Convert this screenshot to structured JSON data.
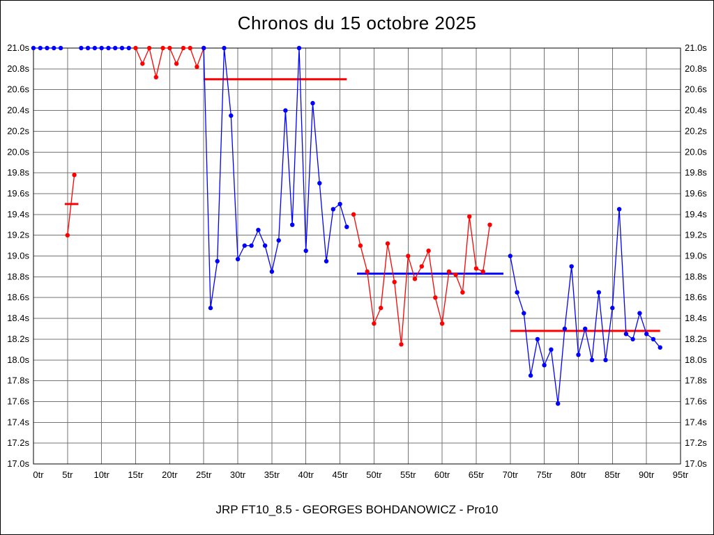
{
  "title": "Chronos du 15 octobre 2025",
  "footer": "JRP FT10_8.5 - GEORGES BOHDANOWICZ - Pro10",
  "chart_data": {
    "type": "line",
    "title": "Chronos du 15 octobre 2025",
    "xlabel": "",
    "ylabel": "",
    "xlim": [
      0,
      95
    ],
    "ylim": [
      17.0,
      21.0
    ],
    "x_tick_step": 5,
    "y_tick_step": 0.2,
    "grid": true,
    "grid_color": "#737373",
    "border_color": "#000000",
    "x_ticks": [
      "0tr",
      "5tr",
      "10tr",
      "15tr",
      "20tr",
      "25tr",
      "30tr",
      "35tr",
      "40tr",
      "45tr",
      "50tr",
      "55tr",
      "60tr",
      "65tr",
      "70tr",
      "75tr",
      "80tr",
      "85tr",
      "90tr",
      "95tr"
    ],
    "y_ticks": [
      "21.0s",
      "20.8s",
      "20.6s",
      "20.4s",
      "20.2s",
      "20.0s",
      "19.8s",
      "19.6s",
      "19.4s",
      "19.2s",
      "19.0s",
      "18.8s",
      "18.6s",
      "18.4s",
      "18.2s",
      "18.0s",
      "17.8s",
      "17.6s",
      "17.4s",
      "17.2s",
      "17.0s"
    ],
    "series": [
      {
        "name": "blue-run-1",
        "color": "#0000ff",
        "points": [
          [
            0,
            21
          ],
          [
            1,
            21
          ],
          [
            2,
            21
          ],
          [
            3,
            21
          ],
          [
            4,
            21
          ]
        ]
      },
      {
        "name": "red-run-1",
        "color": "#ff0000",
        "points": [
          [
            5,
            19.2
          ],
          [
            6,
            19.78
          ]
        ]
      },
      {
        "name": "blue-run-2",
        "color": "#0000ff",
        "points": [
          [
            7,
            21
          ],
          [
            8,
            21
          ],
          [
            9,
            21
          ],
          [
            10,
            21
          ],
          [
            11,
            21
          ],
          [
            12,
            21
          ],
          [
            13,
            21
          ],
          [
            14,
            21
          ]
        ]
      },
      {
        "name": "red-run-2",
        "color": "#ff0000",
        "points": [
          [
            15,
            21
          ],
          [
            16,
            20.85
          ],
          [
            17,
            21
          ],
          [
            18,
            20.72
          ],
          [
            19,
            21
          ],
          [
            20,
            21
          ],
          [
            21,
            20.85
          ],
          [
            22,
            21
          ],
          [
            23,
            21
          ],
          [
            24,
            20.82
          ],
          [
            25,
            21
          ]
        ]
      },
      {
        "name": "blue-run-3",
        "color": "#0000ff",
        "points": [
          [
            25,
            21
          ],
          [
            26,
            18.5
          ],
          [
            27,
            18.95
          ],
          [
            28,
            21
          ],
          [
            29,
            20.35
          ],
          [
            30,
            18.97
          ],
          [
            31,
            19.1
          ],
          [
            32,
            19.1
          ],
          [
            33,
            19.25
          ],
          [
            34,
            19.1
          ],
          [
            35,
            18.85
          ],
          [
            36,
            19.15
          ],
          [
            37,
            20.4
          ],
          [
            38,
            19.3
          ],
          [
            39,
            21
          ],
          [
            40,
            19.05
          ],
          [
            41,
            20.47
          ],
          [
            42,
            19.7
          ],
          [
            43,
            18.95
          ],
          [
            44,
            19.45
          ],
          [
            45,
            19.5
          ],
          [
            46,
            19.28
          ]
        ]
      },
      {
        "name": "red-run-3",
        "color": "#ff0000",
        "points": [
          [
            47,
            19.4
          ],
          [
            48,
            19.1
          ],
          [
            49,
            18.85
          ],
          [
            50,
            18.35
          ],
          [
            51,
            18.5
          ],
          [
            52,
            19.12
          ],
          [
            53,
            18.75
          ],
          [
            54,
            18.15
          ],
          [
            55,
            19
          ],
          [
            56,
            18.78
          ],
          [
            57,
            18.9
          ],
          [
            58,
            19.05
          ],
          [
            59,
            18.6
          ],
          [
            60,
            18.35
          ],
          [
            61,
            18.85
          ],
          [
            62,
            18.82
          ],
          [
            63,
            18.65
          ],
          [
            64,
            19.38
          ],
          [
            65,
            18.88
          ],
          [
            66,
            18.85
          ],
          [
            67,
            19.3
          ]
        ]
      },
      {
        "name": "blue-run-4",
        "color": "#0000ff",
        "points": [
          [
            70,
            19
          ],
          [
            71,
            18.65
          ],
          [
            72,
            18.45
          ],
          [
            73,
            17.85
          ],
          [
            74,
            18.2
          ],
          [
            75,
            17.95
          ],
          [
            76,
            18.1
          ],
          [
            77,
            17.58
          ],
          [
            78,
            18.3
          ],
          [
            79,
            18.9
          ],
          [
            80,
            18.05
          ],
          [
            81,
            18.3
          ],
          [
            82,
            18
          ],
          [
            83,
            18.65
          ],
          [
            84,
            18
          ],
          [
            85,
            18.5
          ],
          [
            86,
            19.45
          ],
          [
            87,
            18.25
          ],
          [
            88,
            18.2
          ],
          [
            89,
            18.45
          ],
          [
            90,
            18.25
          ],
          [
            91,
            18.2
          ],
          [
            92,
            18.12
          ]
        ]
      }
    ],
    "avg_lines": [
      {
        "name": "average-red-1",
        "color": "#ff0000",
        "x1": 4.6,
        "x2": 6.6,
        "y": 19.5
      },
      {
        "name": "average-red-2",
        "color": "#ff0000",
        "x1": 25,
        "x2": 46,
        "y": 20.7
      },
      {
        "name": "average-blue-1",
        "color": "#0000ff",
        "x1": 47.5,
        "x2": 69,
        "y": 18.83
      },
      {
        "name": "average-red-3",
        "color": "#ff0000",
        "x1": 70,
        "x2": 92,
        "y": 18.28
      }
    ]
  }
}
